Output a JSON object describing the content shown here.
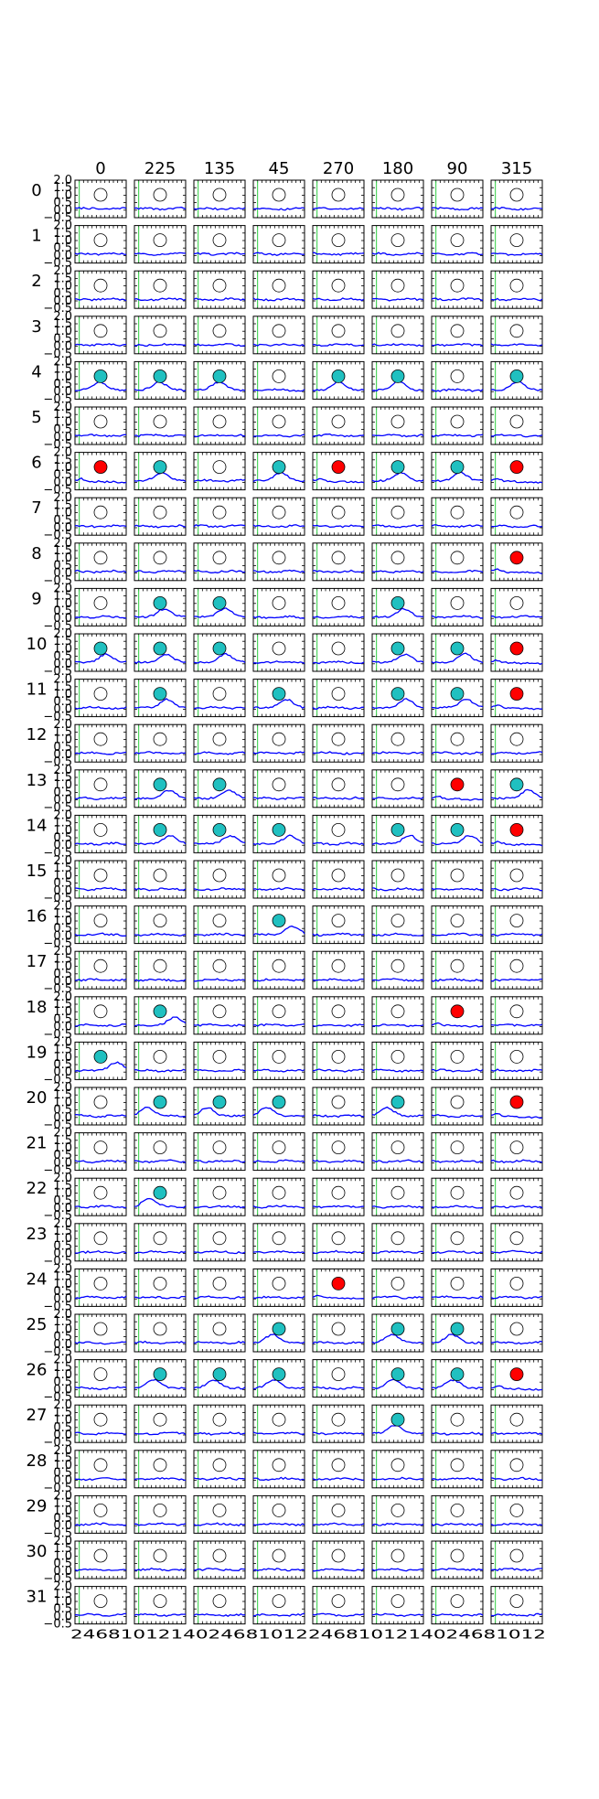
{
  "chart_data": {
    "type": "line",
    "title": "",
    "column_labels": [
      "0",
      "225",
      "135",
      "45",
      "270",
      "180",
      "90",
      "315"
    ],
    "row_labels": [
      "0",
      "1",
      "2",
      "3",
      "4",
      "5",
      "6",
      "7",
      "8",
      "9",
      "10",
      "11",
      "12",
      "13",
      "14",
      "15",
      "16",
      "17",
      "18",
      "19",
      "20",
      "21",
      "22",
      "23",
      "24",
      "25",
      "26",
      "27",
      "28",
      "29",
      "30",
      "31"
    ],
    "ylim": [
      -0.5,
      2.0
    ],
    "xlim": [
      0,
      12
    ],
    "yticks": [
      "−0.5",
      "0.0",
      "0.5",
      "1.0",
      "1.5",
      "2.0"
    ],
    "xtick_text": "2468101214024681012",
    "stimulus_line_x": 1,
    "marker_colors": {
      "none": "#ffffff",
      "response": "#20c0c0",
      "strong": "#ff0000"
    },
    "markers": [
      [
        "none",
        "none",
        "none",
        "none",
        "none",
        "none",
        "none",
        "none"
      ],
      [
        "none",
        "none",
        "none",
        "none",
        "none",
        "none",
        "none",
        "none"
      ],
      [
        "none",
        "none",
        "none",
        "none",
        "none",
        "none",
        "none",
        "none"
      ],
      [
        "none",
        "none",
        "none",
        "none",
        "none",
        "none",
        "none",
        "none"
      ],
      [
        "response",
        "response",
        "response",
        "none",
        "response",
        "response",
        "none",
        "response"
      ],
      [
        "none",
        "none",
        "none",
        "none",
        "none",
        "none",
        "none",
        "none"
      ],
      [
        "strong",
        "response",
        "none",
        "response",
        "strong",
        "response",
        "response",
        "strong"
      ],
      [
        "none",
        "none",
        "none",
        "none",
        "none",
        "none",
        "none",
        "none"
      ],
      [
        "none",
        "none",
        "none",
        "none",
        "none",
        "none",
        "none",
        "strong"
      ],
      [
        "none",
        "response",
        "response",
        "none",
        "none",
        "response",
        "none",
        "none"
      ],
      [
        "response",
        "response",
        "response",
        "none",
        "none",
        "response",
        "response",
        "strong"
      ],
      [
        "none",
        "response",
        "none",
        "response",
        "none",
        "response",
        "response",
        "strong"
      ],
      [
        "none",
        "none",
        "none",
        "none",
        "none",
        "none",
        "none",
        "none"
      ],
      [
        "none",
        "response",
        "response",
        "none",
        "none",
        "none",
        "strong",
        "response"
      ],
      [
        "none",
        "response",
        "response",
        "response",
        "none",
        "response",
        "response",
        "strong"
      ],
      [
        "none",
        "none",
        "none",
        "none",
        "none",
        "none",
        "none",
        "none"
      ],
      [
        "none",
        "none",
        "none",
        "response",
        "none",
        "none",
        "none",
        "none"
      ],
      [
        "none",
        "none",
        "none",
        "none",
        "none",
        "none",
        "none",
        "none"
      ],
      [
        "none",
        "response",
        "none",
        "none",
        "none",
        "none",
        "strong",
        "none"
      ],
      [
        "response",
        "none",
        "none",
        "none",
        "none",
        "none",
        "none",
        "none"
      ],
      [
        "none",
        "response",
        "response",
        "response",
        "none",
        "response",
        "none",
        "strong"
      ],
      [
        "none",
        "none",
        "none",
        "none",
        "none",
        "none",
        "none",
        "none"
      ],
      [
        "none",
        "response",
        "none",
        "none",
        "none",
        "none",
        "none",
        "none"
      ],
      [
        "none",
        "none",
        "none",
        "none",
        "none",
        "none",
        "none",
        "none"
      ],
      [
        "none",
        "none",
        "none",
        "none",
        "strong",
        "none",
        "none",
        "none"
      ],
      [
        "none",
        "none",
        "none",
        "response",
        "none",
        "response",
        "response",
        "none"
      ],
      [
        "none",
        "response",
        "response",
        "response",
        "none",
        "response",
        "response",
        "strong"
      ],
      [
        "none",
        "none",
        "none",
        "none",
        "none",
        "response",
        "none",
        "none"
      ],
      [
        "none",
        "none",
        "none",
        "none",
        "none",
        "none",
        "none",
        "none"
      ],
      [
        "none",
        "none",
        "none",
        "none",
        "none",
        "none",
        "none",
        "none"
      ],
      [
        "none",
        "none",
        "none",
        "none",
        "none",
        "none",
        "none",
        "none"
      ],
      [
        "none",
        "none",
        "none",
        "none",
        "none",
        "none",
        "none",
        "none"
      ]
    ]
  }
}
